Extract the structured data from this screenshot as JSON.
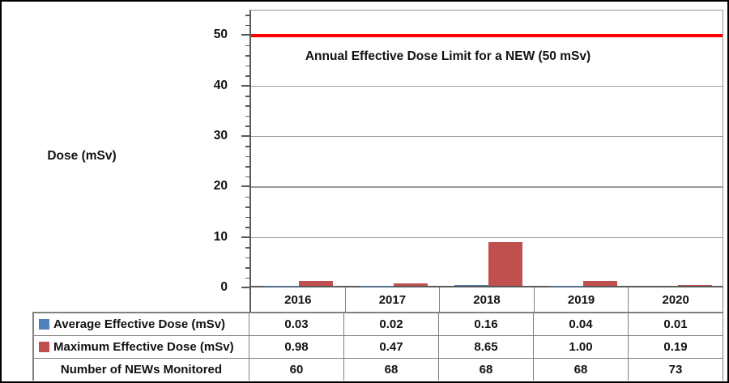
{
  "colors": {
    "frame_border": "#000000",
    "background": "#ffffff",
    "axis": "#595959",
    "gridline": "#9b9b9b",
    "table_border": "#808080",
    "series_average": "#4F81BD",
    "series_maximum": "#C0504D",
    "limit_line": "#FF0000"
  },
  "chart_data": {
    "type": "bar",
    "title": "",
    "ylabel": "Dose (mSv)",
    "xlabel": "",
    "categories": [
      "2016",
      "2017",
      "2018",
      "2019",
      "2020"
    ],
    "series": [
      {
        "name": "Average Effective Dose (mSv)",
        "color": "#4F81BD",
        "values": [
          0.03,
          0.02,
          0.16,
          0.04,
          0.01
        ]
      },
      {
        "name": "Maximum Effective Dose (mSv)",
        "color": "#C0504D",
        "values": [
          0.98,
          0.47,
          8.65,
          1.0,
          0.19
        ]
      }
    ],
    "ylim": [
      0,
      55
    ],
    "yticks": [
      0,
      10,
      20,
      30,
      40,
      50
    ],
    "minor_tick_step": 2,
    "grid": true,
    "legend_position": "table-row-labels",
    "limit_line": {
      "value": 50,
      "color": "#FF0000",
      "label": "Annual Effective Dose Limit for a NEW (50 mSv)"
    }
  },
  "table": {
    "rows": [
      {
        "label": "Average Effective Dose (mSv)",
        "marker_color": "#4F81BD",
        "values": [
          "0.03",
          "0.02",
          "0.16",
          "0.04",
          "0.01"
        ]
      },
      {
        "label": "Maximum Effective Dose (mSv)",
        "marker_color": "#C0504D",
        "values": [
          "0.98",
          "0.47",
          "8.65",
          "1.00",
          "0.19"
        ]
      },
      {
        "label": "Number of NEWs Monitored",
        "marker_color": "",
        "values": [
          "60",
          "68",
          "68",
          "68",
          "73"
        ]
      }
    ]
  }
}
